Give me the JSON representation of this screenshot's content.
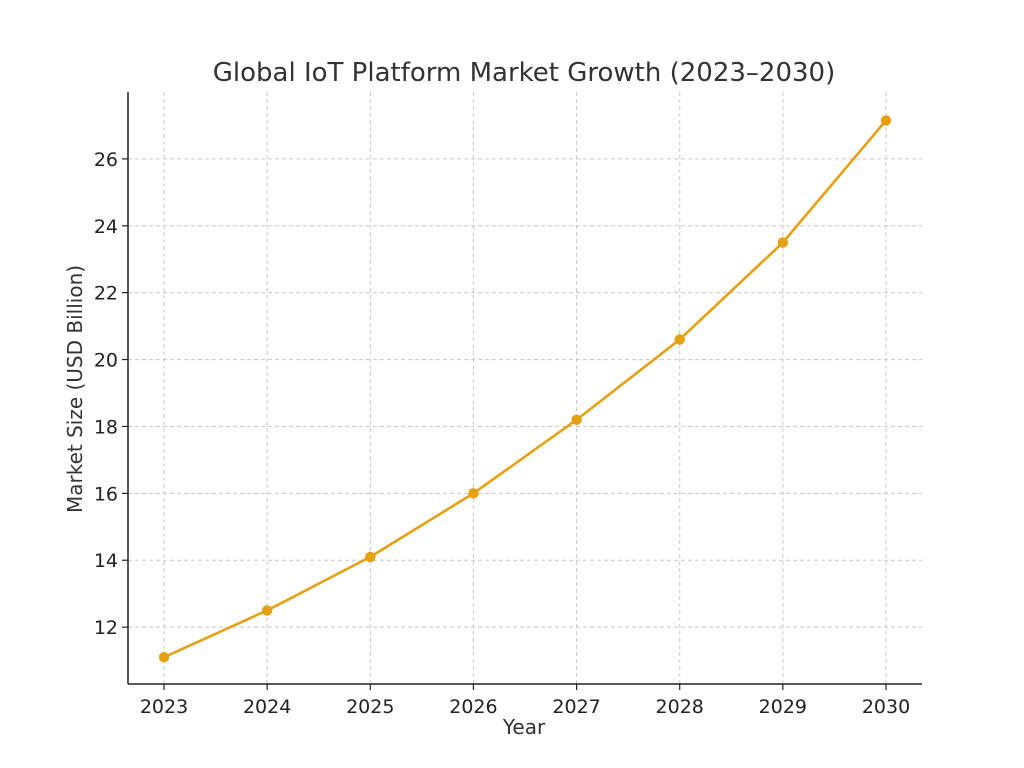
{
  "chart_data": {
    "type": "line",
    "title": "Global IoT Platform Market Growth (2023–2030)",
    "xlabel": "Year",
    "ylabel": "Market Size (USD Billion)",
    "x": [
      "2023",
      "2024",
      "2025",
      "2026",
      "2027",
      "2028",
      "2029",
      "2030"
    ],
    "series": [
      {
        "values": [
          11.1,
          12.5,
          14.1,
          16.0,
          18.2,
          20.6,
          23.5,
          27.15
        ],
        "color": "#E6A011"
      }
    ],
    "yticks": [
      12,
      14,
      16,
      18,
      20,
      22,
      24,
      26
    ],
    "ylim": [
      10.3,
      28.0
    ],
    "grid": true,
    "colors": {
      "line": "#E6A011",
      "grid": "#c8c8c8",
      "axis": "#222222",
      "text": "#333333"
    }
  }
}
